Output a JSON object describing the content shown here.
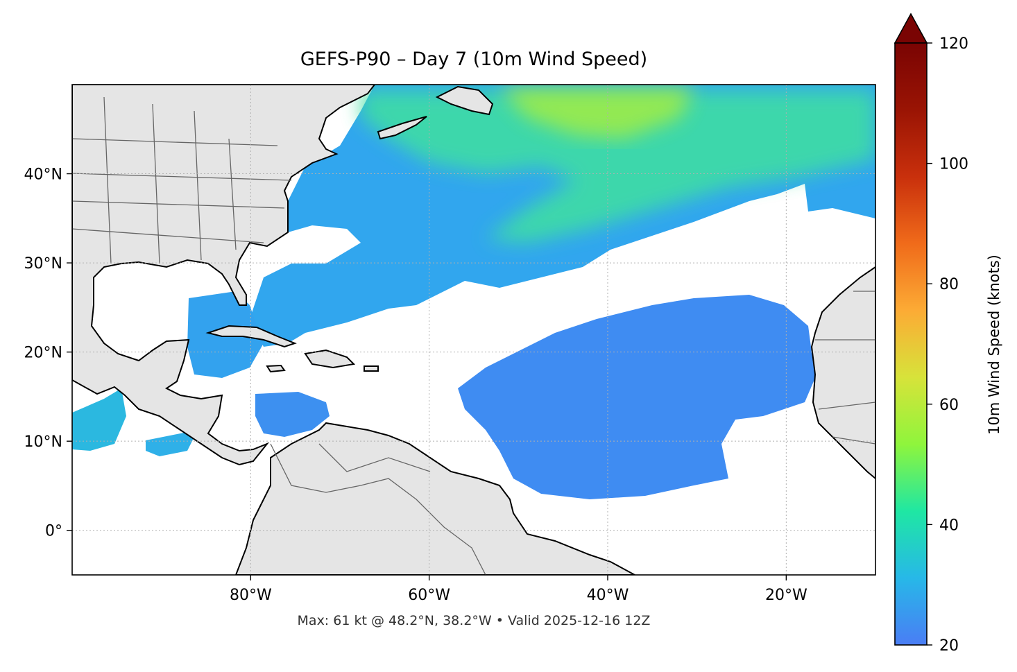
{
  "title": "GEFS-P90 – Day 7 (10m Wind Speed)",
  "footer": "Max: 61 kt @ 48.2°N, 38.2°W • Valid 2025-12-16 12Z",
  "map": {
    "lon_range": [
      -100,
      -10
    ],
    "lat_range": [
      -5,
      50
    ],
    "lon_ticks": [
      {
        "lon": -80,
        "label": "80°W"
      },
      {
        "lon": -60,
        "label": "60°W"
      },
      {
        "lon": -40,
        "label": "40°W"
      },
      {
        "lon": -20,
        "label": "20°W"
      }
    ],
    "lat_ticks": [
      {
        "lat": 40,
        "label": "40°N"
      },
      {
        "lat": 30,
        "label": "30°N"
      },
      {
        "lat": 20,
        "label": "20°N"
      },
      {
        "lat": 10,
        "label": "10°N"
      },
      {
        "lat": 0,
        "label": "0°"
      }
    ],
    "colors": {
      "land": "#e5e5e5",
      "ocean": "#ffffff",
      "coast": "#000000",
      "borders": "#666666",
      "grid": "#b0b0b0"
    }
  },
  "colorbar": {
    "label": "10m Wind Speed (knots)",
    "min": 20,
    "max": 120,
    "extend": "max",
    "ticks": [
      20,
      40,
      60,
      80,
      100,
      120
    ],
    "colormap": [
      "#4a7df5",
      "#27b8e8",
      "#1fe7a3",
      "#8ff53c",
      "#d7e33a",
      "#fcab35",
      "#f06b1a",
      "#c9300c",
      "#9a1404",
      "#7a0403"
    ]
  }
}
